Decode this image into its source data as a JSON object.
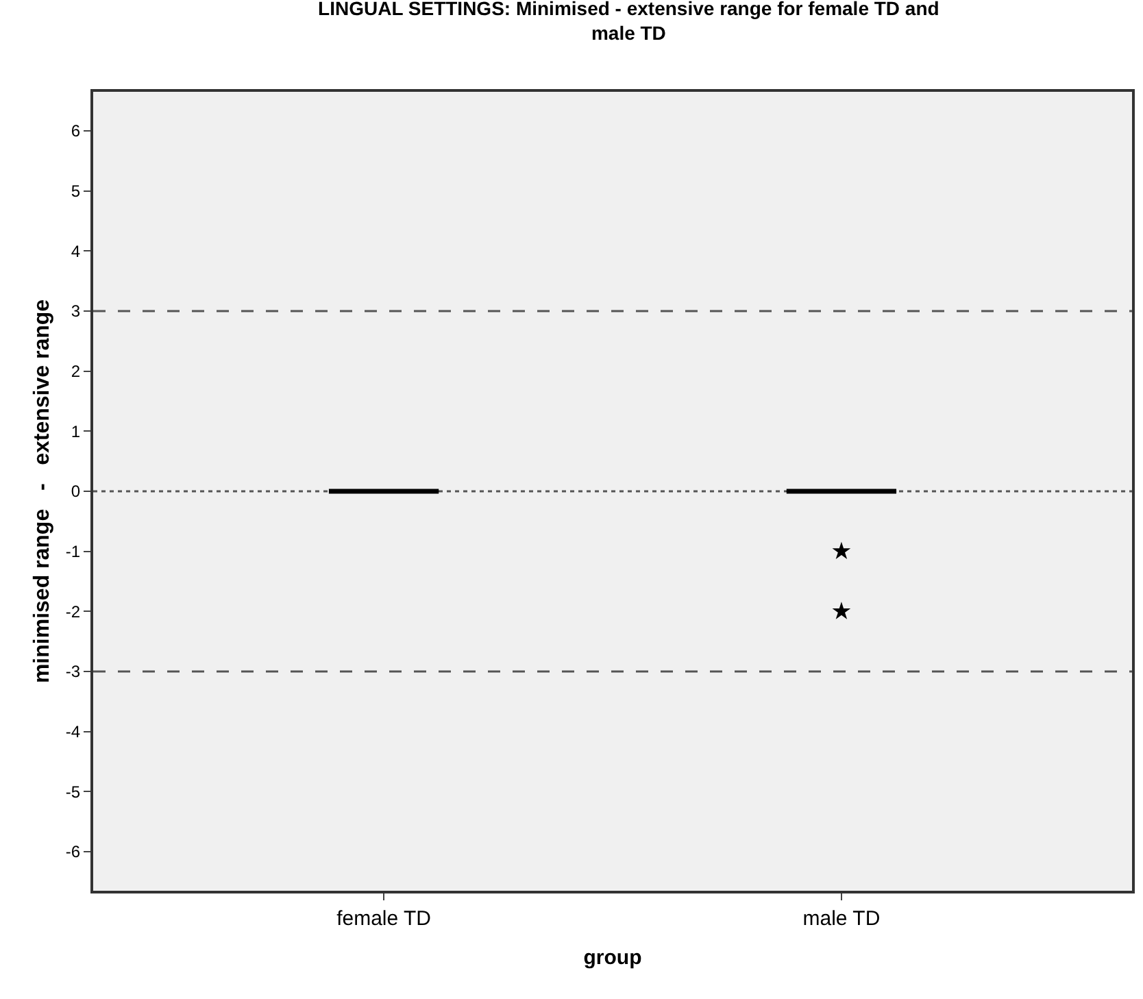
{
  "chart_data": {
    "type": "box",
    "title": "LINGUAL SETTINGS: Minimised - extensive range for female TD and male TD",
    "xlabel": "group",
    "ylabel": "minimised range   -   extensive range",
    "categories": [
      "female TD",
      "male TD"
    ],
    "boxes": [
      {
        "low": 0,
        "q1": 0,
        "median": 0,
        "q3": 0,
        "high": 0
      },
      {
        "low": 0,
        "q1": 0,
        "median": 0,
        "q3": 0,
        "high": 0,
        "outliers": [
          -1,
          -2
        ]
      }
    ],
    "ylim": [
      -6.65,
      6.65
    ],
    "yticks": [
      -6,
      -5,
      -4,
      -3,
      -2,
      -1,
      0,
      1,
      2,
      3,
      4,
      5,
      6
    ],
    "ref_lines": [
      {
        "axis": "y",
        "value": 3,
        "color": "#555555",
        "line_style": "dashed"
      },
      {
        "axis": "y",
        "value": 0,
        "color": "#555555",
        "line_style": "dotted"
      },
      {
        "axis": "y",
        "value": -3,
        "color": "#555555",
        "line_style": "dashed"
      }
    ],
    "marker": "star",
    "grid": false
  }
}
